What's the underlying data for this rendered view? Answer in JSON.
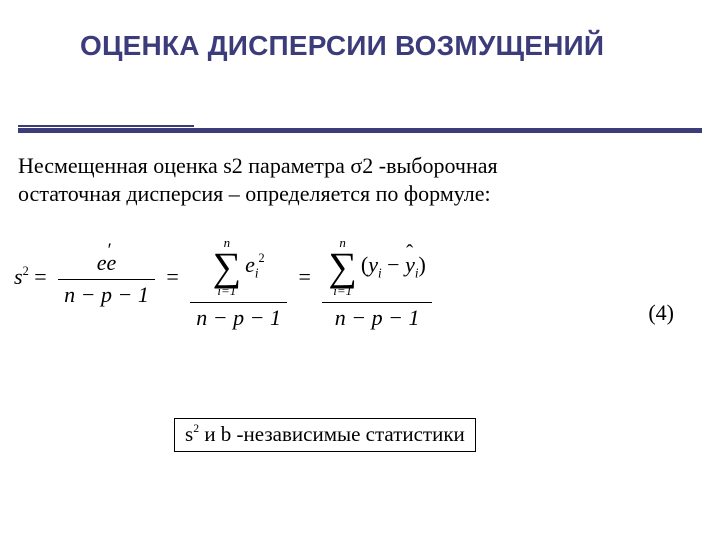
{
  "title": "ОЦЕНКА ДИСПЕРСИИ ВОЗМУЩЕНИЙ",
  "paragraph": {
    "line1": "Несмещенная оценка s2 параметра σ2  -выборочная",
    "line2": "остаточная дисперсия – определяется по формуле:"
  },
  "formula": {
    "lhs_base": "s",
    "lhs_sup": "2",
    "equals": "=",
    "frac1_num_pre": "e",
    "frac1_num_post": "e",
    "den_common": "n − p − 1",
    "sum_top": "n",
    "sum_bottom": "i=1",
    "term_e": "e",
    "term_e_sup": "2",
    "term_e_sub": "i",
    "open_paren": "(",
    "y": "y",
    "y_sub": "i",
    "minus": " − ",
    "close_paren": ")",
    "number_label": "(4)"
  },
  "note": {
    "s": "s",
    "s_sup": "2",
    "rest": " и b -независимые статистики"
  },
  "colors": {
    "accent": "#3c3c7a",
    "bg": "#ffffff",
    "text": "#000000"
  },
  "fontsize": {
    "title": 28,
    "body": 22,
    "note": 21
  }
}
